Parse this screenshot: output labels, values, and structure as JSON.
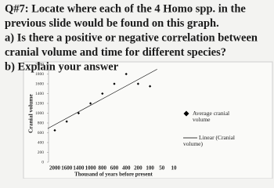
{
  "chart_data": {
    "type": "scatter",
    "annotations": [
      "Q#7: Locate where each of the 4 Homo spp. in the",
      "previous slide would be found on this graph.",
      "a) Is there a positive or negative correlation between",
      "cranial volume and time for different species?",
      "b) Explain your answer"
    ],
    "ylabel": "Cranial volume",
    "xlabel": "Thousand of years before present",
    "categories": [
      "2000",
      "1600",
      "1400",
      "1000",
      "800",
      "600",
      "400",
      "200",
      "100",
      "50",
      "10"
    ],
    "series": [
      {
        "name": "Average cranial volume",
        "color": "#000000",
        "values": [
          650,
          830,
          1000,
          1200,
          1400,
          1600,
          1800,
          1600,
          1550,
          null,
          null
        ]
      }
    ],
    "trendline": {
      "name": "Linear (Cranial volume)",
      "color": "#000000"
    },
    "ylim": [
      0,
      2000
    ],
    "yticks": [
      0,
      200,
      400,
      600,
      800,
      1000,
      1200,
      1400,
      1600,
      1800,
      2000
    ],
    "legend": "right"
  }
}
